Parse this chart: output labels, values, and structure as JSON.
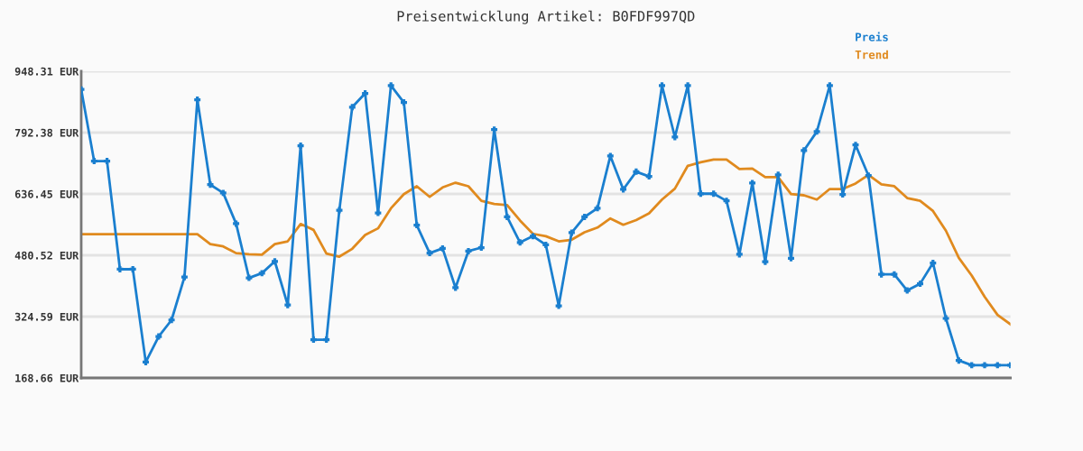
{
  "chart_data": {
    "type": "line",
    "title": "Preisentwicklung Artikel: B0FDF997QD",
    "categories": [
      null,
      null,
      null,
      null,
      null,
      null,
      null,
      null,
      null,
      null,
      null,
      null,
      null,
      null,
      null,
      null,
      null,
      null,
      null,
      null,
      null,
      null,
      null,
      null,
      null,
      null,
      null,
      null,
      null,
      null,
      null,
      null,
      null,
      null,
      null,
      null,
      null,
      null,
      null,
      null,
      null,
      null,
      null,
      null,
      null,
      null,
      null,
      null,
      null,
      null,
      null,
      null,
      null,
      null,
      null,
      null,
      null,
      null,
      null,
      null,
      null,
      null,
      null,
      null,
      null,
      null,
      null,
      null,
      null,
      null,
      null,
      null,
      null
    ],
    "series": [
      {
        "name": "Preis",
        "color": "#1a7fcf",
        "marker": "cross",
        "values": [
          902,
          720,
          720,
          445,
          445,
          209,
          274,
          316,
          425,
          876,
          660,
          639,
          561,
          423,
          435,
          465,
          354,
          759,
          266,
          266,
          595,
          857,
          892,
          588,
          912,
          869,
          557,
          486,
          498,
          398,
          491,
          500,
          800,
          578,
          513,
          529,
          507,
          352,
          538,
          578,
          600,
          733,
          648,
          693,
          681,
          912,
          781,
          912,
          637,
          637,
          619,
          483,
          664,
          464,
          685,
          473,
          747,
          795,
          912,
          635,
          761,
          683,
          432,
          432,
          391,
          408,
          461,
          320,
          213,
          201,
          201,
          201,
          201
        ]
      },
      {
        "name": "Trend",
        "color": "#e08a1e",
        "marker": "none",
        "values": [
          534,
          534,
          534,
          534,
          534,
          534,
          534,
          534,
          534,
          534,
          509,
          503,
          486,
          483,
          482,
          509,
          516,
          560,
          545,
          485,
          477,
          497,
          532,
          549,
          600,
          636,
          656,
          629,
          653,
          665,
          656,
          619,
          611,
          608,
          569,
          535,
          529,
          516,
          520,
          539,
          551,
          574,
          558,
          570,
          587,
          622,
          650,
          708,
          717,
          724,
          724,
          700,
          701,
          679,
          679,
          636,
          633,
          622,
          649,
          649,
          663,
          685,
          661,
          656,
          626,
          619,
          593,
          543,
          474,
          429,
          375,
          329,
          305
        ]
      }
    ],
    "ylim": [
      168.66,
      948.31
    ],
    "yticks": [
      {
        "value": 168.66,
        "label": "168.66 EUR"
      },
      {
        "value": 324.59,
        "label": "324.59 EUR"
      },
      {
        "value": 480.52,
        "label": "480.52 EUR"
      },
      {
        "value": 636.45,
        "label": "636.45 EUR"
      },
      {
        "value": 792.38,
        "label": "792.38 EUR"
      },
      {
        "value": 948.31,
        "label": "948.31 EUR"
      }
    ],
    "grid": "y",
    "legend": "top right",
    "tick_labels": "y",
    "line_style": "solid"
  }
}
